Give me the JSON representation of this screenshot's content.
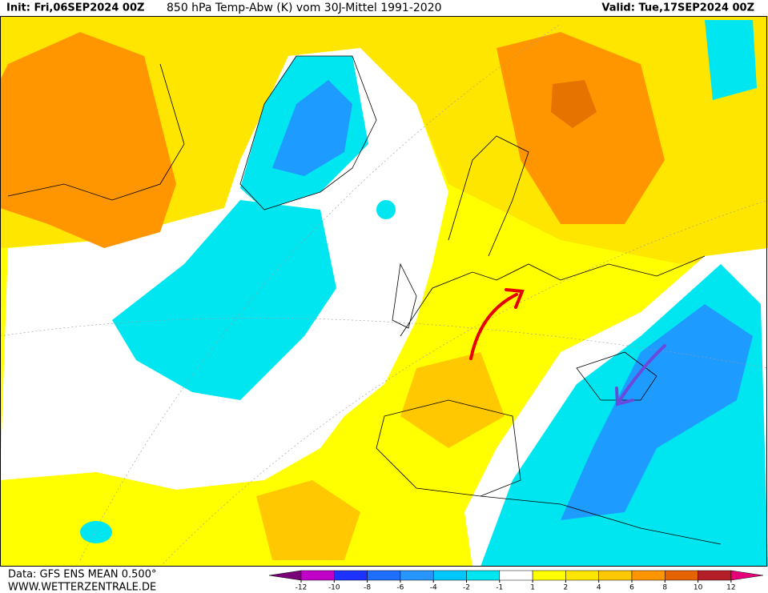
{
  "header": {
    "init": "Init: Fri,06SEP2024 00Z",
    "title": "850 hPa Temp-Abw (K) vom 30J-Mittel 1991-2020",
    "valid": "Valid: Tue,17SEP2024 00Z"
  },
  "footer": {
    "data": "Data: GFS ENS MEAN 0.500°",
    "site": "WWW.WETTERZENTRALE.DE"
  },
  "legend": {
    "levels": [
      -12,
      -10,
      -8,
      -6,
      -4,
      -2,
      -1,
      1,
      2,
      4,
      6,
      8,
      10,
      12
    ],
    "colors": [
      "#7a007a",
      "#c000c8",
      "#1e32ff",
      "#1e6eff",
      "#2896ff",
      "#00c8ff",
      "#00e6f0",
      "#ffffff",
      "#ffff00",
      "#ffe600",
      "#ffc800",
      "#ff9600",
      "#e66400",
      "#b41e28",
      "#e6007a"
    ]
  }
}
